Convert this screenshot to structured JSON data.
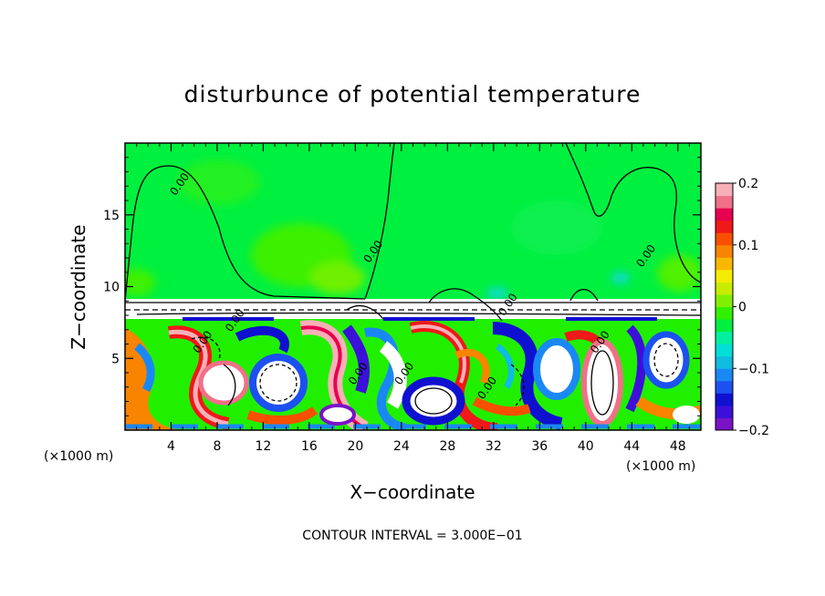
{
  "chart_data": {
    "type": "heatmap",
    "title": "disturbunce of potential temperature",
    "xlabel": "X−coordinate",
    "ylabel": "Z−coordinate",
    "x_unit": "(×1000 m)",
    "y_unit": "(×1000 m)",
    "xlim": [
      0,
      50
    ],
    "ylim": [
      0,
      20
    ],
    "x_ticks": [
      4,
      8,
      12,
      16,
      20,
      24,
      28,
      32,
      36,
      40,
      44,
      48
    ],
    "y_ticks": [
      5,
      10,
      15
    ],
    "colorbar": {
      "range": [
        -0.2,
        0.2
      ],
      "ticks": [
        "0.2",
        "0.1",
        "0",
        "−0.1",
        "−0.2"
      ],
      "colors": [
        "#7a12c8",
        "#3c10d8",
        "#1010d0",
        "#1c50f0",
        "#1a88f4",
        "#10bce0",
        "#00ded8",
        "#00f0a0",
        "#00f040",
        "#30f000",
        "#80f000",
        "#c8ec00",
        "#f4ec00",
        "#f8b800",
        "#f88400",
        "#f85000",
        "#f01818",
        "#e80050",
        "#f07088",
        "#f8b0b8"
      ]
    },
    "contour_interval_label": "CONTOUR INTERVAL = 3.000E−01",
    "contour_labels": [
      {
        "text": "0.00",
        "x": 5,
        "z": 17
      },
      {
        "text": "0.00",
        "x": 21.8,
        "z": 12.3
      },
      {
        "text": "0.00",
        "x": 45.5,
        "z": 12.0
      },
      {
        "text": "0.00",
        "x": 33.5,
        "z": 8.6
      },
      {
        "text": "0.00",
        "x": 9.8,
        "z": 7.5
      },
      {
        "text": "0.00",
        "x": 7.0,
        "z": 6.0
      },
      {
        "text": "0.00",
        "x": 41.5,
        "z": 6.0
      },
      {
        "text": "0.00",
        "x": 20.5,
        "z": 3.8
      },
      {
        "text": "0.00",
        "x": 24.5,
        "z": 3.8
      },
      {
        "text": "0.00",
        "x": 31.7,
        "z": 2.8
      }
    ],
    "features": {
      "upper_layer_value": 0.0,
      "inversion_height": 9.0,
      "lower_layer": "turbulent eddies, values between −0.2 and 0.2 and beyond (white = out of range)"
    }
  }
}
